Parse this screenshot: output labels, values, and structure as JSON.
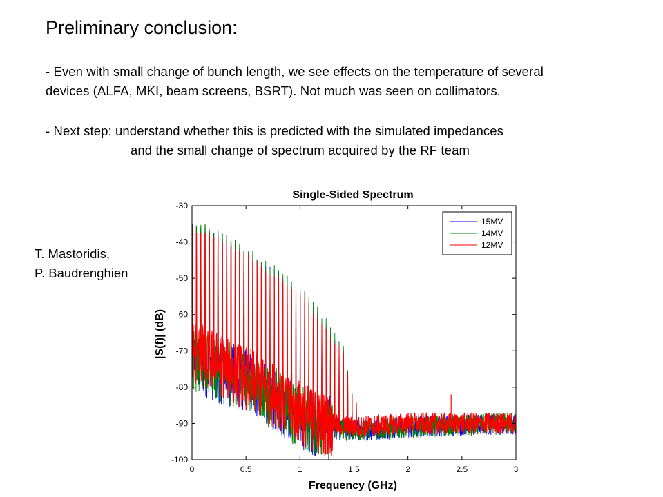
{
  "slide": {
    "title": "Preliminary conclusion:",
    "bullet1_line1": "- Even with small change of bunch length, we see effects on the temperature of several",
    "bullet1_line2": "devices (ALFA, MKI, beam screens, BSRT). Not much was seen on collimators.",
    "bullet2_line1": "- Next step: understand whether this is predicted with the simulated impedances",
    "bullet2_line2": "and the small change of spectrum acquired by the RF team",
    "credit_line1": "T. Mastoridis,",
    "credit_line2": "P. Baudrenghien"
  },
  "chart_data": {
    "type": "line",
    "title": "Single-Sided Spectrum",
    "xlabel": "Frequency (GHz)",
    "ylabel": "|S(f)| (dB)",
    "xlim": [
      0,
      3
    ],
    "ylim": [
      -100,
      -30
    ],
    "x_ticks": [
      "0",
      "0.5",
      "1",
      "1.5",
      "2",
      "2.5",
      "3"
    ],
    "y_ticks": [
      "-30",
      "-40",
      "-50",
      "-60",
      "-70",
      "-80",
      "-90",
      "-100"
    ],
    "legend_position": "top-right",
    "grid": false,
    "harmonic_spacing_ghz": 0.04,
    "series": [
      {
        "name": "15MV",
        "color": "#0000ff",
        "peak_envelope": [
          [
            0,
            -36
          ],
          [
            0.2,
            -38
          ],
          [
            0.4,
            -41
          ],
          [
            0.6,
            -45
          ],
          [
            0.8,
            -49
          ],
          [
            1.0,
            -54
          ],
          [
            1.2,
            -61
          ],
          [
            1.4,
            -70
          ],
          [
            1.5,
            -85
          ],
          [
            2.0,
            -88
          ],
          [
            3.0,
            -89
          ]
        ],
        "floor_envelope": [
          [
            0,
            -72
          ],
          [
            0.2,
            -75
          ],
          [
            0.4,
            -77
          ],
          [
            0.6,
            -80
          ],
          [
            0.8,
            -84
          ],
          [
            1.0,
            -88
          ],
          [
            1.2,
            -91
          ],
          [
            1.5,
            -92
          ],
          [
            2.0,
            -91
          ],
          [
            3.0,
            -90
          ]
        ]
      },
      {
        "name": "14MV",
        "color": "#008000",
        "peak_envelope": [
          [
            0,
            -35
          ],
          [
            0.2,
            -37
          ],
          [
            0.4,
            -40
          ],
          [
            0.6,
            -44
          ],
          [
            0.8,
            -48
          ],
          [
            1.0,
            -53
          ],
          [
            1.2,
            -60
          ],
          [
            1.4,
            -69
          ],
          [
            1.5,
            -85
          ],
          [
            2.0,
            -88
          ],
          [
            3.0,
            -89
          ]
        ],
        "floor_envelope": [
          [
            0,
            -72
          ],
          [
            0.2,
            -75
          ],
          [
            0.4,
            -77
          ],
          [
            0.6,
            -80
          ],
          [
            0.8,
            -84
          ],
          [
            1.0,
            -88
          ],
          [
            1.2,
            -91
          ],
          [
            1.5,
            -92
          ],
          [
            2.0,
            -91
          ],
          [
            3.0,
            -90
          ]
        ]
      },
      {
        "name": "12MV",
        "color": "#ff0000",
        "peak_envelope": [
          [
            0,
            -37
          ],
          [
            0.2,
            -39
          ],
          [
            0.4,
            -42
          ],
          [
            0.6,
            -46
          ],
          [
            0.8,
            -50
          ],
          [
            1.0,
            -55
          ],
          [
            1.2,
            -62
          ],
          [
            1.4,
            -71
          ],
          [
            1.5,
            -85
          ],
          [
            2.0,
            -88
          ],
          [
            3.0,
            -89
          ]
        ],
        "floor_envelope": [
          [
            0,
            -70
          ],
          [
            0.2,
            -73
          ],
          [
            0.4,
            -76
          ],
          [
            0.6,
            -79
          ],
          [
            0.8,
            -83
          ],
          [
            1.0,
            -87
          ],
          [
            1.2,
            -90
          ],
          [
            1.5,
            -91
          ],
          [
            2.0,
            -90
          ],
          [
            3.0,
            -90
          ]
        ]
      }
    ],
    "annotations": [
      {
        "x": 2.4,
        "y": -82,
        "note_kind": "spike",
        "series": "12MV"
      }
    ]
  }
}
